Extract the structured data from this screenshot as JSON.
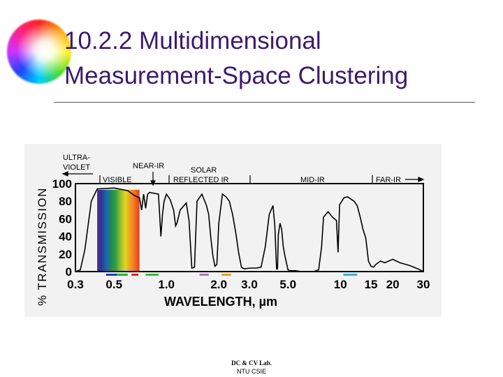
{
  "slide": {
    "title_line1": "10.2.2 Multidimensional",
    "title_line2": "Measurement-Space Clustering",
    "footer_line1": "DC & CV Lab.",
    "footer_line2": "NTU CSIE"
  },
  "chart_data": {
    "type": "line",
    "ylabel": "% TRANSMISSION",
    "xlabel": "WAVELENGTH, µm",
    "xscale": "log",
    "y_ticks": [
      "100",
      "80",
      "60",
      "40",
      "20",
      "0"
    ],
    "x_ticks": [
      {
        "v": 0.3,
        "label": "0.3"
      },
      {
        "v": 0.5,
        "label": "0.5"
      },
      {
        "v": 1.0,
        "label": "1.0"
      },
      {
        "v": 2.0,
        "label": "2.0"
      },
      {
        "v": 3.0,
        "label": "3.0"
      },
      {
        "v": 5.0,
        "label": "5.0"
      },
      {
        "v": 10,
        "label": "10"
      },
      {
        "v": 15,
        "label": "15"
      },
      {
        "v": 20,
        "label": "20"
      },
      {
        "v": 30,
        "label": "30"
      }
    ],
    "ylim": [
      0,
      100
    ],
    "xlim": [
      0.3,
      30
    ],
    "regions": {
      "ultra_violet_1": "ULTRA-",
      "ultra_violet_2": "VIOLET",
      "visible": "VISIBLE",
      "near_ir": "NEAR-IR",
      "solar_1": "SOLAR",
      "solar_2": "REFLECTED IR",
      "mid_ir": "MID-IR",
      "far_ir": "FAR-IR"
    },
    "series": [
      {
        "x": [
          0.3,
          0.32,
          0.34,
          0.37,
          0.4,
          0.5,
          0.6,
          0.66,
          0.7,
          0.72,
          0.74,
          0.76,
          0.78,
          0.8,
          0.9,
          0.93,
          0.95,
          0.97,
          1.0,
          1.05,
          1.1,
          1.13,
          1.15,
          1.2,
          1.3,
          1.35,
          1.4,
          1.45,
          1.5,
          1.6,
          1.7,
          1.75,
          1.8,
          1.85,
          1.9,
          1.95,
          2.0,
          2.1,
          2.2,
          2.3,
          2.4,
          2.5,
          2.6,
          2.7,
          2.8,
          3.0,
          3.3,
          3.5,
          3.7,
          3.9,
          4.1,
          4.2,
          4.3,
          4.35,
          4.4,
          4.5,
          4.6,
          4.7,
          4.8,
          5.0,
          5.1,
          5.5,
          6,
          7,
          7.5,
          7.8,
          8,
          8.5,
          9,
          9.5,
          9.7,
          9.9,
          10.5,
          11,
          12,
          12.5,
          13,
          13.5,
          14,
          14.5,
          15,
          15.5,
          16,
          17,
          18,
          20,
          22,
          25,
          28,
          30
        ],
        "values": [
          0,
          2,
          25,
          80,
          94,
          95,
          92,
          86,
          84,
          70,
          88,
          72,
          88,
          90,
          88,
          40,
          65,
          80,
          88,
          82,
          70,
          52,
          55,
          70,
          78,
          58,
          4,
          5,
          80,
          88,
          75,
          65,
          38,
          18,
          6,
          8,
          55,
          88,
          85,
          80,
          65,
          45,
          22,
          5,
          3,
          4,
          4,
          5,
          28,
          65,
          75,
          52,
          3,
          3,
          42,
          55,
          48,
          28,
          18,
          2,
          1,
          1,
          0,
          0,
          2,
          28,
          62,
          68,
          62,
          58,
          22,
          76,
          84,
          85,
          80,
          75,
          62,
          48,
          38,
          12,
          6,
          5,
          8,
          12,
          10,
          14,
          10,
          7,
          3,
          0
        ]
      }
    ],
    "spectrum_colors": [
      "#4a2a8a",
      "#2a3a9a",
      "#1a6aa8",
      "#1a8a5a",
      "#3aa040",
      "#9ac030",
      "#e0d820",
      "#f0a020",
      "#f07020",
      "#e83a20"
    ],
    "band_marks": [
      {
        "x0": 0.45,
        "x1": 0.52,
        "color": "#1a3ad0",
        "label": "blue"
      },
      {
        "x0": 0.52,
        "x1": 0.6,
        "color": "#20b040",
        "label": "green"
      },
      {
        "x0": 0.63,
        "x1": 0.69,
        "color": "#e02020",
        "label": "red"
      },
      {
        "x0": 0.76,
        "x1": 0.9,
        "color": "#30c030",
        "label": "nir"
      },
      {
        "x0": 1.55,
        "x1": 1.75,
        "color": "#b070c0",
        "label": "swir1"
      },
      {
        "x0": 2.08,
        "x1": 2.35,
        "color": "#f0a000",
        "label": "swir2"
      },
      {
        "x0": 10.4,
        "x1": 12.5,
        "color": "#30b0e0",
        "label": "thermal"
      }
    ]
  }
}
